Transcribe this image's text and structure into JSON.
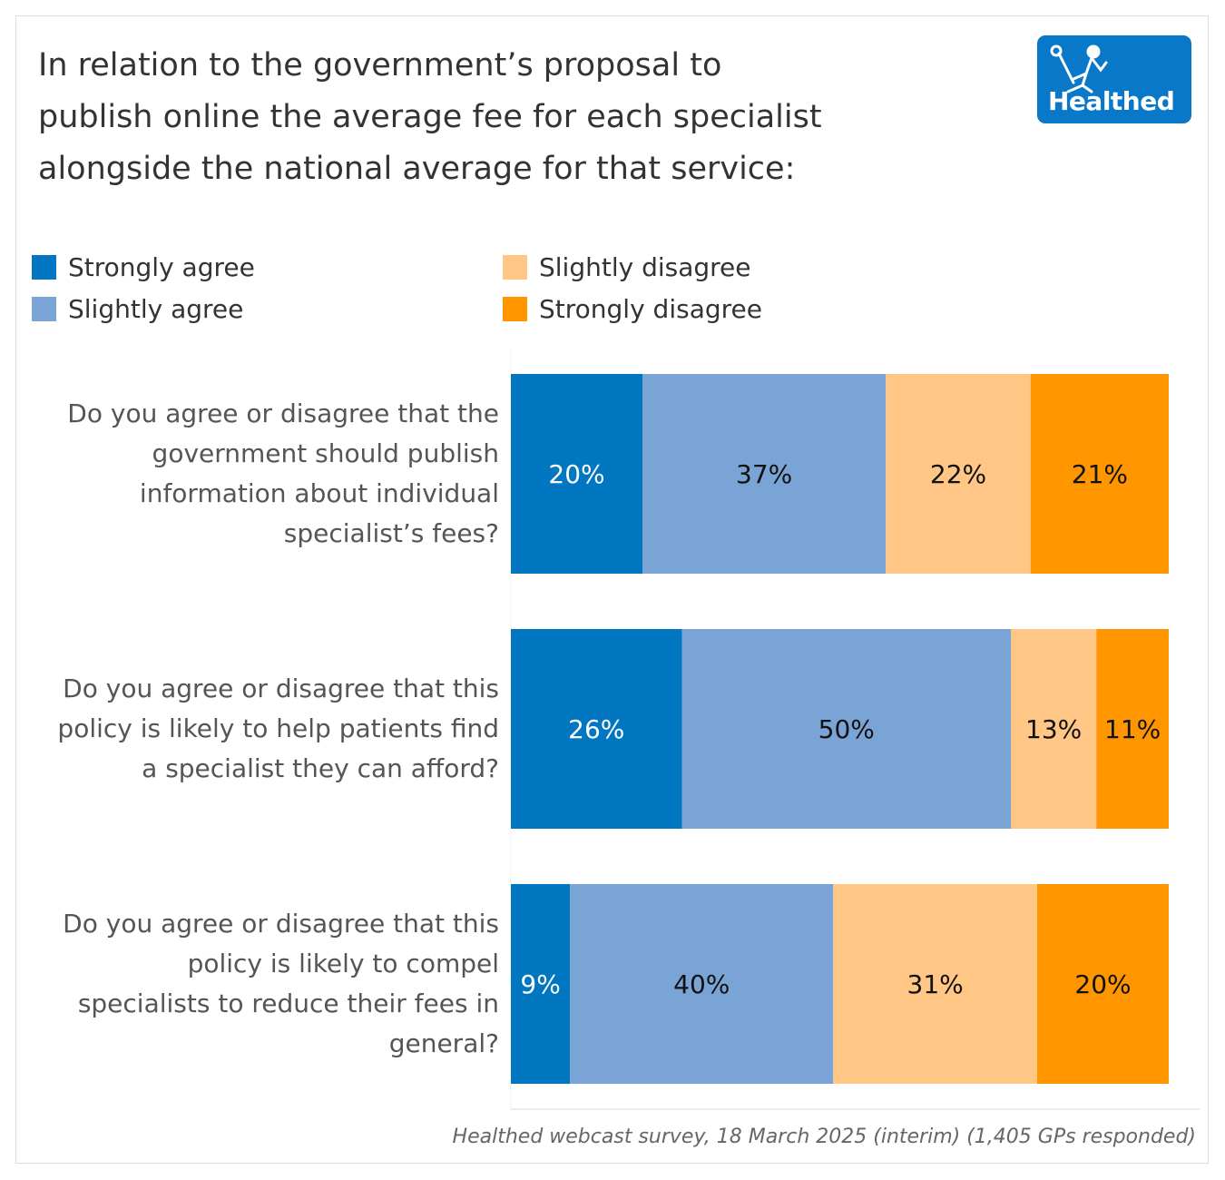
{
  "title_lines": [
    "In relation to the government’s proposal to",
    "publish online the average fee for each specialist",
    "alongside the national average for that service:"
  ],
  "logo": {
    "text": "Healthed",
    "icon": "hermes-runner-icon",
    "bg_color": "#0A78C8"
  },
  "footer": "Healthed webcast survey, 18 March 2025 (interim) (1,405 GPs responded)",
  "chart_data": {
    "type": "bar",
    "orientation": "horizontal",
    "stacked": true,
    "title": "In relation to the government’s proposal to publish online the average fee for each specialist alongside the national average for that service:",
    "xlabel": "",
    "ylabel": "",
    "xlim": [
      0,
      100
    ],
    "grid": false,
    "legend_position": "top-left",
    "categories": [
      "Do you agree or disagree that the government should publish information about individual specialist’s fees?",
      "Do you agree or disagree that this policy is likely to help patients find a specialist they can afford?",
      "Do you agree or disagree that this policy is likely to compel specialists to reduce their fees in general?"
    ],
    "category_lines": [
      [
        "Do you agree or disagree that the",
        "government should publish",
        "information about individual",
        "specialist’s fees?"
      ],
      [
        "Do you agree or disagree that this",
        "policy is likely to help patients find",
        "a specialist they can afford?"
      ],
      [
        "Do you agree or disagree that this",
        "policy is likely to compel",
        "specialists to reduce their fees in",
        "general?"
      ]
    ],
    "series": [
      {
        "name": "Strongly agree",
        "color": "#0077C0",
        "label_color": "#FFFFFF",
        "values": [
          20,
          26,
          9
        ]
      },
      {
        "name": "Slightly agree",
        "color": "#7BA4D6",
        "label_color": "#111111",
        "values": [
          37,
          50,
          40
        ]
      },
      {
        "name": "Slightly disagree",
        "color": "#FFC686",
        "label_color": "#111111",
        "values": [
          22,
          13,
          31
        ]
      },
      {
        "name": "Strongly disagree",
        "color": "#FF9600",
        "label_color": "#111111",
        "values": [
          21,
          11,
          20
        ]
      }
    ],
    "value_suffix": "%"
  }
}
